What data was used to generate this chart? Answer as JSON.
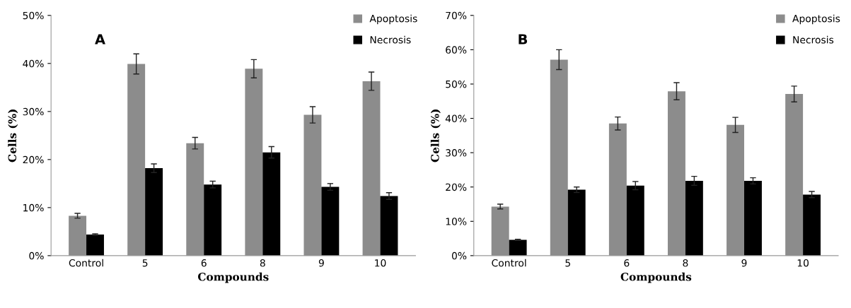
{
  "chart_data": [
    {
      "type": "bar",
      "xlabel": "Compounds",
      "ylabel": "Cells (%)",
      "annotations": [
        "A"
      ],
      "categories": [
        "Control",
        "5",
        "6",
        "8",
        "9",
        "10"
      ],
      "series": [
        {
          "name": "Apoptosis",
          "color": "#8c8c8c",
          "values": [
            8.3,
            39.9,
            23.4,
            38.9,
            29.3,
            36.3
          ],
          "errors": [
            0.5,
            2.1,
            1.2,
            1.9,
            1.7,
            1.9
          ]
        },
        {
          "name": "Necrosis",
          "color": "#000000",
          "values": [
            4.4,
            18.2,
            14.8,
            21.5,
            14.3,
            12.4
          ],
          "errors": [
            0.15,
            0.9,
            0.7,
            1.2,
            0.7,
            0.7
          ]
        }
      ],
      "ylim": [
        0,
        50
      ],
      "yticks": [
        {
          "value": 0,
          "label": "0%"
        },
        {
          "value": 10,
          "label": "10%"
        },
        {
          "value": 20,
          "label": "20%"
        },
        {
          "value": 30,
          "label": "30%"
        },
        {
          "value": 40,
          "label": "40%"
        },
        {
          "value": 50,
          "label": "50%"
        }
      ],
      "grid": false,
      "legend": "top right"
    },
    {
      "type": "bar",
      "xlabel": "Compounds",
      "ylabel": "Cells (%)",
      "annotations": [
        "B"
      ],
      "categories": [
        "Control",
        "5",
        "6",
        "8",
        "9",
        "10"
      ],
      "series": [
        {
          "name": "Apoptosis",
          "color": "#8c8c8c",
          "values": [
            14.3,
            57.1,
            38.5,
            47.9,
            38.1,
            47.1
          ],
          "errors": [
            0.7,
            2.9,
            1.9,
            2.5,
            2.2,
            2.3
          ]
        },
        {
          "name": "Necrosis",
          "color": "#000000",
          "values": [
            4.6,
            19.2,
            20.4,
            21.8,
            21.8,
            17.8
          ],
          "errors": [
            0.15,
            0.8,
            1.2,
            1.3,
            0.9,
            0.9
          ]
        }
      ],
      "ylim": [
        0,
        70
      ],
      "yticks": [
        {
          "value": 0,
          "label": "0%"
        },
        {
          "value": 10,
          "label": "10%"
        },
        {
          "value": 20,
          "label": "20%"
        },
        {
          "value": 30,
          "label": "30%"
        },
        {
          "value": 40,
          "label": "40%"
        },
        {
          "value": 50,
          "label": "50%"
        },
        {
          "value": 60,
          "label": "60%"
        },
        {
          "value": 70,
          "label": "70%"
        }
      ],
      "grid": false,
      "legend": "top right"
    }
  ]
}
